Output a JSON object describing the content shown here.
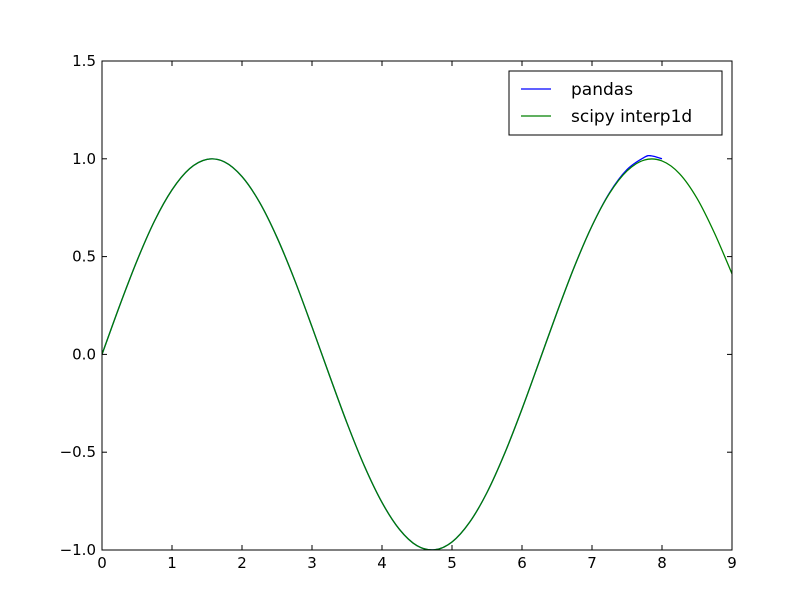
{
  "chart_data": {
    "type": "line",
    "title": "",
    "xlabel": "",
    "ylabel": "",
    "xlim": [
      0,
      9
    ],
    "ylim": [
      -1.0,
      1.5
    ],
    "xticks": [
      0,
      1,
      2,
      3,
      4,
      5,
      6,
      7,
      8,
      9
    ],
    "xtick_labels": [
      "0",
      "1",
      "2",
      "3",
      "4",
      "5",
      "6",
      "7",
      "8",
      "9"
    ],
    "yticks": [
      -1.0,
      -0.5,
      0.0,
      0.5,
      1.0,
      1.5
    ],
    "ytick_labels": [
      "−1.0",
      "−0.5",
      "0.0",
      "0.5",
      "1.0",
      "1.5"
    ],
    "grid": false,
    "legend_position": "top-right",
    "series": [
      {
        "name": "pandas",
        "color": "#0000ff",
        "x": [
          0,
          0.25,
          0.5,
          0.75,
          1.0,
          1.25,
          1.5,
          1.75,
          2.0,
          2.25,
          2.5,
          2.75,
          3.0,
          3.25,
          3.5,
          3.75,
          4.0,
          4.25,
          4.5,
          4.75,
          5.0,
          5.25,
          5.5,
          5.75,
          6.0,
          6.25,
          6.5,
          6.75,
          7.0,
          7.25,
          7.5,
          7.75,
          7.85,
          8.0
        ],
        "y": [
          0.0,
          0.247,
          0.479,
          0.682,
          0.841,
          0.949,
          0.997,
          0.984,
          0.909,
          0.778,
          0.598,
          0.382,
          0.141,
          -0.108,
          -0.351,
          -0.572,
          -0.757,
          -0.895,
          -0.978,
          -0.999,
          -0.959,
          -0.859,
          -0.706,
          -0.508,
          -0.279,
          -0.033,
          0.215,
          0.45,
          0.657,
          0.826,
          0.945,
          1.008,
          1.015,
          1.0
        ]
      },
      {
        "name": "scipy interp1d",
        "color": "#008000",
        "x": [
          0,
          0.25,
          0.5,
          0.75,
          1.0,
          1.25,
          1.5,
          1.75,
          2.0,
          2.25,
          2.5,
          2.75,
          3.0,
          3.25,
          3.5,
          3.75,
          4.0,
          4.25,
          4.5,
          4.75,
          5.0,
          5.25,
          5.5,
          5.75,
          6.0,
          6.25,
          6.5,
          6.75,
          7.0,
          7.25,
          7.5,
          7.75,
          8.0,
          8.25,
          8.5,
          8.75,
          9.0
        ],
        "y": [
          0.0,
          0.247,
          0.479,
          0.682,
          0.841,
          0.949,
          0.997,
          0.984,
          0.909,
          0.778,
          0.598,
          0.382,
          0.141,
          -0.108,
          -0.351,
          -0.572,
          -0.757,
          -0.895,
          -0.978,
          -0.999,
          -0.959,
          -0.859,
          -0.706,
          -0.508,
          -0.279,
          -0.033,
          0.215,
          0.45,
          0.657,
          0.823,
          0.938,
          0.994,
          0.989,
          0.924,
          0.798,
          0.62,
          0.412
        ]
      }
    ]
  }
}
